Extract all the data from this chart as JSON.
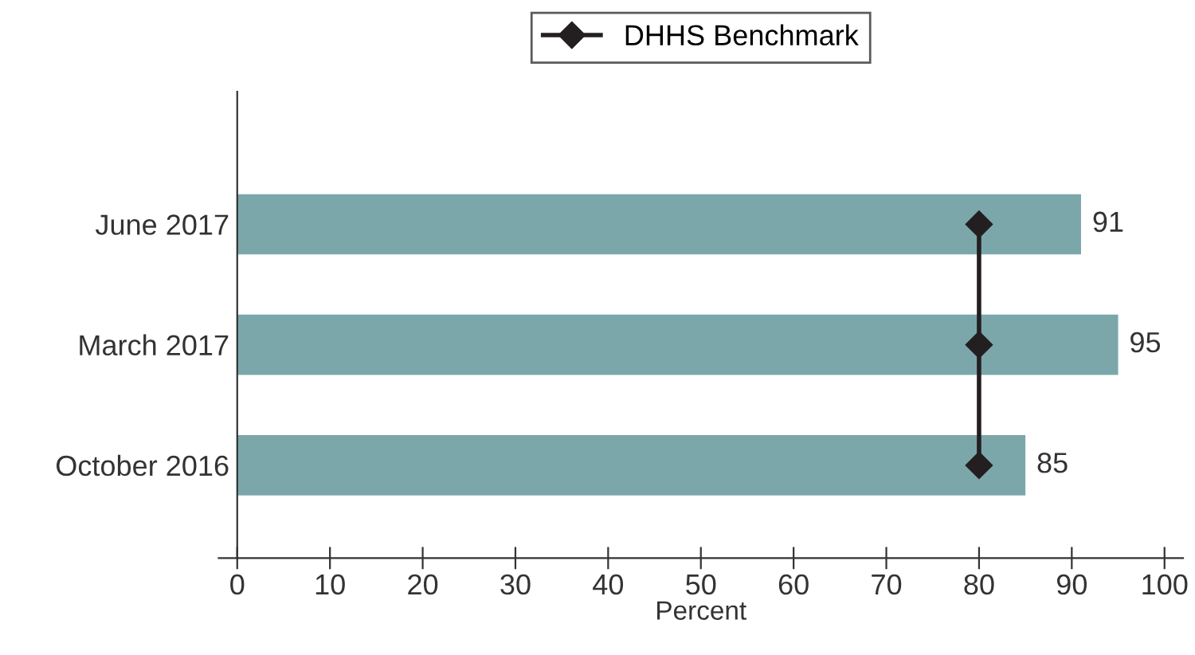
{
  "chart_data": {
    "type": "bar",
    "orientation": "horizontal",
    "categories": [
      "June 2017",
      "March 2017",
      "October 2016"
    ],
    "xlabel": "Percent",
    "xlim": [
      -2,
      102
    ],
    "xticks": [
      0,
      10,
      20,
      30,
      40,
      50,
      60,
      70,
      80,
      90,
      100
    ],
    "grid": false,
    "legend": "top",
    "series": [
      {
        "color": "#7ba7ab",
        "values": [
          91,
          95,
          85
        ],
        "value_labels": [
          "91",
          "95",
          "85"
        ]
      },
      {
        "type": "line",
        "name": "DHHS Benchmark",
        "color": "#231f20",
        "values": [
          80,
          80,
          80
        ],
        "marker": "diamond",
        "line_style": "solid"
      }
    ]
  }
}
